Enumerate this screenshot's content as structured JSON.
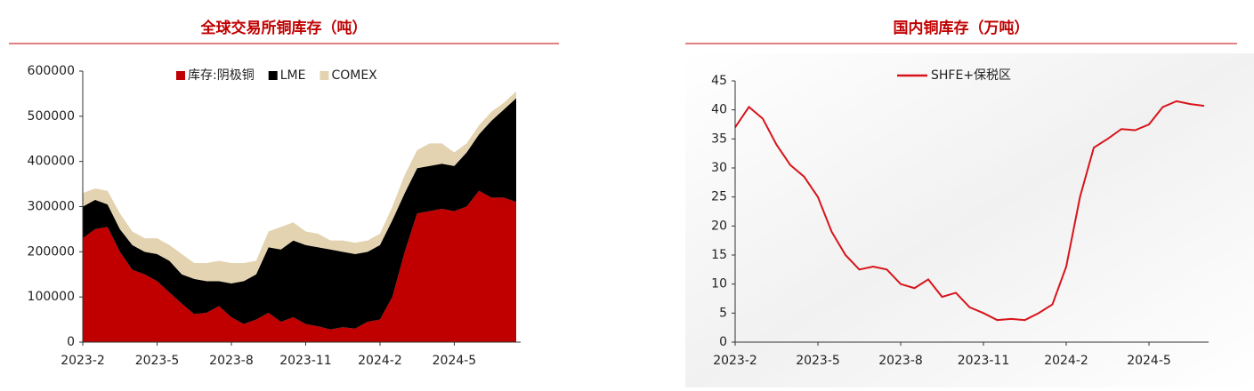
{
  "chart_data": [
    {
      "type": "stacked_area",
      "title": "全球交易所铜库存（吨）",
      "legend": "top",
      "categories": [
        "2023-2",
        null,
        null,
        null,
        null,
        null,
        "2023-5",
        null,
        null,
        null,
        null,
        null,
        "2023-8",
        null,
        null,
        null,
        null,
        null,
        "2023-11",
        null,
        null,
        null,
        null,
        null,
        "2024-2",
        null,
        null,
        null,
        null,
        null,
        "2024-5",
        null,
        null,
        null,
        null,
        null
      ],
      "series": [
        {
          "name": "库存:阴极铜",
          "color": "#c00000",
          "values": [
            230000,
            250000,
            255000,
            200000,
            160000,
            150000,
            135000,
            110000,
            85000,
            62000,
            65000,
            80000,
            55000,
            40000,
            50000,
            65000,
            45000,
            55000,
            40000,
            35000,
            28000,
            33000,
            30000,
            45000,
            50000,
            100000,
            200000,
            285000,
            290000,
            295000,
            290000,
            300000,
            335000,
            320000,
            320000,
            310000
          ]
        },
        {
          "name": "LME",
          "color": "#000000",
          "values": [
            70000,
            65000,
            50000,
            50000,
            55000,
            50000,
            60000,
            70000,
            65000,
            78000,
            70000,
            55000,
            75000,
            95000,
            100000,
            145000,
            160000,
            170000,
            175000,
            175000,
            177000,
            167000,
            165000,
            155000,
            165000,
            170000,
            130000,
            100000,
            100000,
            100000,
            100000,
            120000,
            125000,
            170000,
            195000,
            230000
          ]
        },
        {
          "name": "COMEX",
          "color": "#e3d3b0",
          "values": [
            30000,
            25000,
            30000,
            35000,
            30000,
            30000,
            35000,
            35000,
            45000,
            35000,
            40000,
            45000,
            45000,
            40000,
            30000,
            35000,
            50000,
            40000,
            30000,
            30000,
            20000,
            25000,
            25000,
            25000,
            25000,
            30000,
            40000,
            40000,
            50000,
            45000,
            30000,
            20000,
            20000,
            20000,
            15000,
            15000
          ]
        }
      ],
      "ylim": [
        0,
        600000
      ],
      "yticks": [
        0,
        100000,
        200000,
        300000,
        400000,
        500000,
        600000
      ]
    },
    {
      "type": "line",
      "title": "国内铜库存（万吨）",
      "legend": "top",
      "categories": [
        "2023-2",
        null,
        null,
        null,
        null,
        null,
        "2023-5",
        null,
        null,
        null,
        null,
        null,
        "2023-8",
        null,
        null,
        null,
        null,
        null,
        "2023-11",
        null,
        null,
        null,
        null,
        null,
        "2024-2",
        null,
        null,
        null,
        null,
        null,
        "2024-5",
        null,
        null,
        null,
        null
      ],
      "series": [
        {
          "name": "SHFE+保税区",
          "color": "#d7141a",
          "values": [
            37,
            40.5,
            38.5,
            34,
            30.5,
            28.5,
            25,
            19,
            15,
            12.5,
            13,
            12.5,
            10,
            9.3,
            10.8,
            7.8,
            8.5,
            6,
            5,
            3.8,
            4,
            3.8,
            5,
            6.5,
            13,
            25,
            33.5,
            35,
            36.7,
            36.5,
            37.5,
            40.5,
            41.5,
            41,
            40.7
          ]
        }
      ],
      "ylim": [
        0,
        45
      ],
      "yticks": [
        0,
        5,
        10,
        15,
        20,
        25,
        30,
        35,
        40,
        45
      ]
    }
  ]
}
